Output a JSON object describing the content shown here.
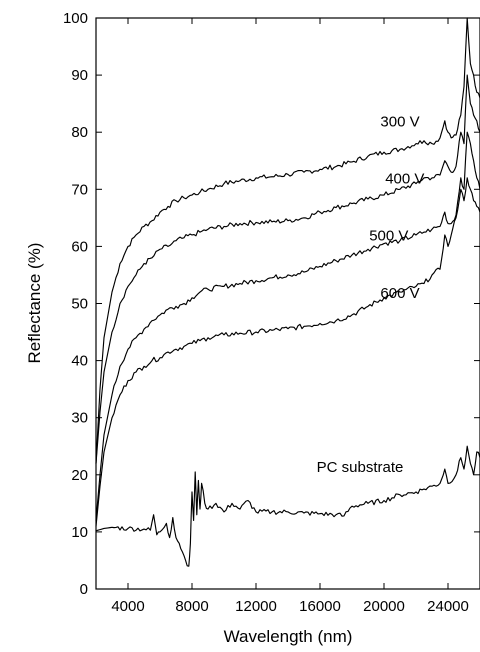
{
  "chart_data": {
    "type": "line",
    "title": "",
    "xlabel": "Wavelength (nm)",
    "ylabel": "Reflectance (%)",
    "xlim": [
      2000,
      26000
    ],
    "ylim": [
      0,
      100
    ],
    "x_ticks": [
      4000,
      8000,
      12000,
      16000,
      20000,
      24000
    ],
    "y_ticks": [
      0,
      10,
      20,
      30,
      40,
      50,
      60,
      70,
      80,
      90,
      100
    ],
    "grid": false,
    "line_color": "#000000",
    "series": [
      {
        "name": "300 V",
        "label_at": [
          21000,
          81
        ],
        "points": [
          [
            2000,
            22
          ],
          [
            2250,
            35
          ],
          [
            2500,
            44
          ],
          [
            3000,
            52
          ],
          [
            3500,
            57
          ],
          [
            4000,
            60
          ],
          [
            4500,
            62
          ],
          [
            5000,
            63.5
          ],
          [
            5500,
            64.5
          ],
          [
            6000,
            66
          ],
          [
            6500,
            67
          ],
          [
            7000,
            68
          ],
          [
            7500,
            68.5
          ],
          [
            8000,
            69
          ],
          [
            8500,
            69.5
          ],
          [
            9000,
            70
          ],
          [
            10000,
            71
          ],
          [
            11000,
            71.5
          ],
          [
            12000,
            72
          ],
          [
            13000,
            72.2
          ],
          [
            14000,
            72.6
          ],
          [
            15000,
            73
          ],
          [
            16000,
            73.5
          ],
          [
            17000,
            74
          ],
          [
            18000,
            74.8
          ],
          [
            19000,
            75.8
          ],
          [
            20000,
            76.5
          ],
          [
            21000,
            77
          ],
          [
            22000,
            78
          ],
          [
            22500,
            78.5
          ],
          [
            23000,
            78
          ],
          [
            23500,
            79
          ],
          [
            23800,
            82
          ],
          [
            24000,
            80
          ],
          [
            24200,
            79
          ],
          [
            24500,
            79.5
          ],
          [
            24800,
            83
          ],
          [
            25000,
            88
          ],
          [
            25200,
            100
          ],
          [
            25400,
            92
          ],
          [
            25600,
            90
          ],
          [
            25800,
            87
          ],
          [
            26000,
            86
          ]
        ]
      },
      {
        "name": "400 V",
        "label_at": [
          21300,
          71
        ],
        "points": [
          [
            2000,
            22
          ],
          [
            2250,
            31
          ],
          [
            2500,
            38
          ],
          [
            3000,
            45
          ],
          [
            3500,
            50
          ],
          [
            4000,
            53
          ],
          [
            4500,
            55
          ],
          [
            5000,
            57
          ],
          [
            5500,
            58
          ],
          [
            6000,
            59.5
          ],
          [
            6500,
            60
          ],
          [
            7000,
            61
          ],
          [
            7500,
            61.5
          ],
          [
            8000,
            62
          ],
          [
            8500,
            62.5
          ],
          [
            9000,
            63
          ],
          [
            10000,
            63.5
          ],
          [
            11000,
            64
          ],
          [
            12000,
            64.2
          ],
          [
            13000,
            64.3
          ],
          [
            14000,
            64.5
          ],
          [
            15000,
            65
          ],
          [
            16000,
            66
          ],
          [
            17000,
            66.8
          ],
          [
            18000,
            67.5
          ],
          [
            19000,
            68.3
          ],
          [
            20000,
            69
          ],
          [
            21000,
            70
          ],
          [
            22000,
            71
          ],
          [
            22500,
            72
          ],
          [
            23000,
            72
          ],
          [
            23500,
            72.5
          ],
          [
            23800,
            75
          ],
          [
            24000,
            74
          ],
          [
            24200,
            73
          ],
          [
            24500,
            74
          ],
          [
            24800,
            80
          ],
          [
            25000,
            78
          ],
          [
            25200,
            90
          ],
          [
            25400,
            85
          ],
          [
            25600,
            83
          ],
          [
            25800,
            82
          ],
          [
            26000,
            80
          ]
        ]
      },
      {
        "name": "500 V",
        "label_at": [
          20300,
          61
        ],
        "points": [
          [
            2000,
            12
          ],
          [
            2250,
            20
          ],
          [
            2500,
            27
          ],
          [
            3000,
            34
          ],
          [
            3500,
            39
          ],
          [
            4000,
            42
          ],
          [
            4500,
            44
          ],
          [
            5000,
            45.5
          ],
          [
            5500,
            47
          ],
          [
            6000,
            48
          ],
          [
            6500,
            49
          ],
          [
            7000,
            49.5
          ],
          [
            7500,
            50
          ],
          [
            8000,
            51
          ],
          [
            8500,
            52
          ],
          [
            9000,
            52.5
          ],
          [
            10000,
            53
          ],
          [
            11000,
            53.5
          ],
          [
            12000,
            54
          ],
          [
            13000,
            54.5
          ],
          [
            14000,
            55
          ],
          [
            15000,
            55.5
          ],
          [
            16000,
            56.5
          ],
          [
            17000,
            57.5
          ],
          [
            18000,
            58.5
          ],
          [
            19000,
            59.5
          ],
          [
            20000,
            60.5
          ],
          [
            21000,
            61
          ],
          [
            22000,
            62
          ],
          [
            22500,
            62.5
          ],
          [
            23000,
            63
          ],
          [
            23500,
            63.5
          ],
          [
            23800,
            66
          ],
          [
            24000,
            64
          ],
          [
            24200,
            64
          ],
          [
            24500,
            65.5
          ],
          [
            24800,
            72
          ],
          [
            25000,
            70
          ],
          [
            25200,
            80
          ],
          [
            25400,
            78
          ],
          [
            25600,
            75
          ],
          [
            25800,
            72
          ],
          [
            26000,
            70
          ]
        ]
      },
      {
        "name": "600 V",
        "label_at": [
          21000,
          51
        ],
        "points": [
          [
            2000,
            11
          ],
          [
            2250,
            18
          ],
          [
            2500,
            24
          ],
          [
            3000,
            30
          ],
          [
            3500,
            34
          ],
          [
            4000,
            36.5
          ],
          [
            4500,
            38
          ],
          [
            5000,
            39
          ],
          [
            5500,
            40
          ],
          [
            6000,
            40.5
          ],
          [
            6500,
            41.5
          ],
          [
            7000,
            42
          ],
          [
            7500,
            42.5
          ],
          [
            8000,
            43
          ],
          [
            8500,
            43.5
          ],
          [
            9000,
            44
          ],
          [
            10000,
            44.5
          ],
          [
            11000,
            44.8
          ],
          [
            12000,
            45
          ],
          [
            13000,
            45.3
          ],
          [
            14000,
            45.6
          ],
          [
            15000,
            46
          ],
          [
            16000,
            46.5
          ],
          [
            17000,
            47
          ],
          [
            18000,
            48
          ],
          [
            19000,
            49.5
          ],
          [
            20000,
            51
          ],
          [
            21000,
            52
          ],
          [
            22000,
            53
          ],
          [
            22500,
            53.5
          ],
          [
            23000,
            55
          ],
          [
            23500,
            56
          ],
          [
            23800,
            62
          ],
          [
            24000,
            60
          ],
          [
            24200,
            62
          ],
          [
            24500,
            65
          ],
          [
            24800,
            70
          ],
          [
            25000,
            68
          ],
          [
            25200,
            72
          ],
          [
            25400,
            70
          ],
          [
            25600,
            68
          ],
          [
            25800,
            67
          ],
          [
            26000,
            66
          ]
        ]
      },
      {
        "name": "PC substrate",
        "label_at": [
          18500,
          20.5
        ],
        "points": [
          [
            2000,
            10.2
          ],
          [
            2500,
            10.6
          ],
          [
            3000,
            10.8
          ],
          [
            4000,
            10.6
          ],
          [
            5000,
            10.5
          ],
          [
            5400,
            10.3
          ],
          [
            5600,
            13
          ],
          [
            5800,
            9.5
          ],
          [
            6000,
            10
          ],
          [
            6400,
            11.5
          ],
          [
            6600,
            9
          ],
          [
            6800,
            12.5
          ],
          [
            7000,
            9
          ],
          [
            7200,
            8
          ],
          [
            7400,
            6.5
          ],
          [
            7600,
            5
          ],
          [
            7800,
            4
          ],
          [
            7900,
            8
          ],
          [
            8000,
            17
          ],
          [
            8100,
            12
          ],
          [
            8200,
            20.5
          ],
          [
            8300,
            13
          ],
          [
            8400,
            19
          ],
          [
            8500,
            14
          ],
          [
            8600,
            18.5
          ],
          [
            8800,
            15
          ],
          [
            9000,
            14
          ],
          [
            9500,
            15
          ],
          [
            10000,
            13.5
          ],
          [
            10500,
            15
          ],
          [
            11000,
            14
          ],
          [
            11500,
            15.5
          ],
          [
            12000,
            13.5
          ],
          [
            13000,
            13.5
          ],
          [
            14000,
            13.5
          ],
          [
            15000,
            13.3
          ],
          [
            16000,
            13.2
          ],
          [
            17000,
            13
          ],
          [
            17500,
            12.8
          ],
          [
            18000,
            14.5
          ],
          [
            19000,
            15
          ],
          [
            20000,
            15.5
          ],
          [
            21000,
            16.5
          ],
          [
            22000,
            17
          ],
          [
            22500,
            17.5
          ],
          [
            23000,
            18
          ],
          [
            23500,
            18.5
          ],
          [
            23800,
            21
          ],
          [
            24000,
            18.5
          ],
          [
            24500,
            20
          ],
          [
            24800,
            23
          ],
          [
            25000,
            21
          ],
          [
            25200,
            25
          ],
          [
            25400,
            22
          ],
          [
            25600,
            20
          ],
          [
            25800,
            24
          ],
          [
            26000,
            23
          ]
        ]
      }
    ]
  }
}
